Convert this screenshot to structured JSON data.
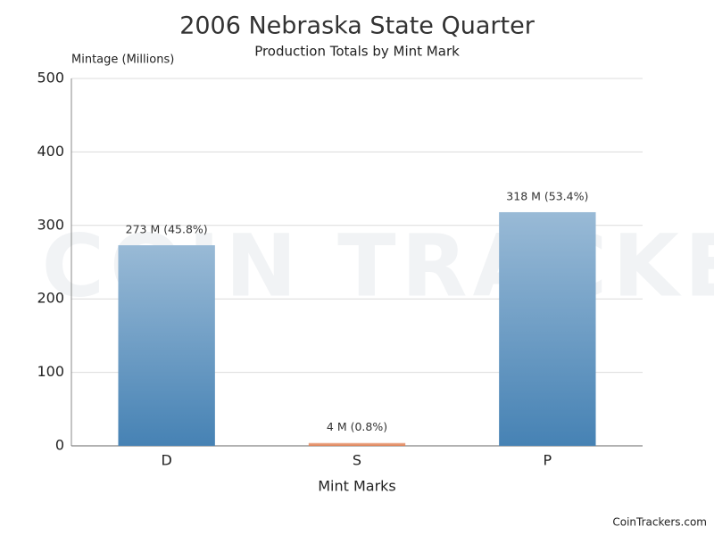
{
  "chart_data": {
    "type": "bar",
    "title": "2006 Nebraska State Quarter",
    "subtitle": "Production Totals by Mint Mark",
    "y_label": "Mintage (Millions)",
    "x_label": "Mint Marks",
    "watermark": "COIN TRACKERS",
    "footer": "CoinTrackers.com",
    "categories": [
      "D",
      "S",
      "P"
    ],
    "values": [
      273,
      4,
      318
    ],
    "value_labels": [
      "273 M (45.8%)",
      "4 M (0.8%)",
      "318 M (53.4%)"
    ],
    "colors": [
      "#4682b4",
      "#e07b4c",
      "#4682b4"
    ],
    "ylim": [
      0,
      500
    ],
    "yticks": [
      0,
      100,
      200,
      300,
      400,
      500
    ],
    "grid": true
  }
}
